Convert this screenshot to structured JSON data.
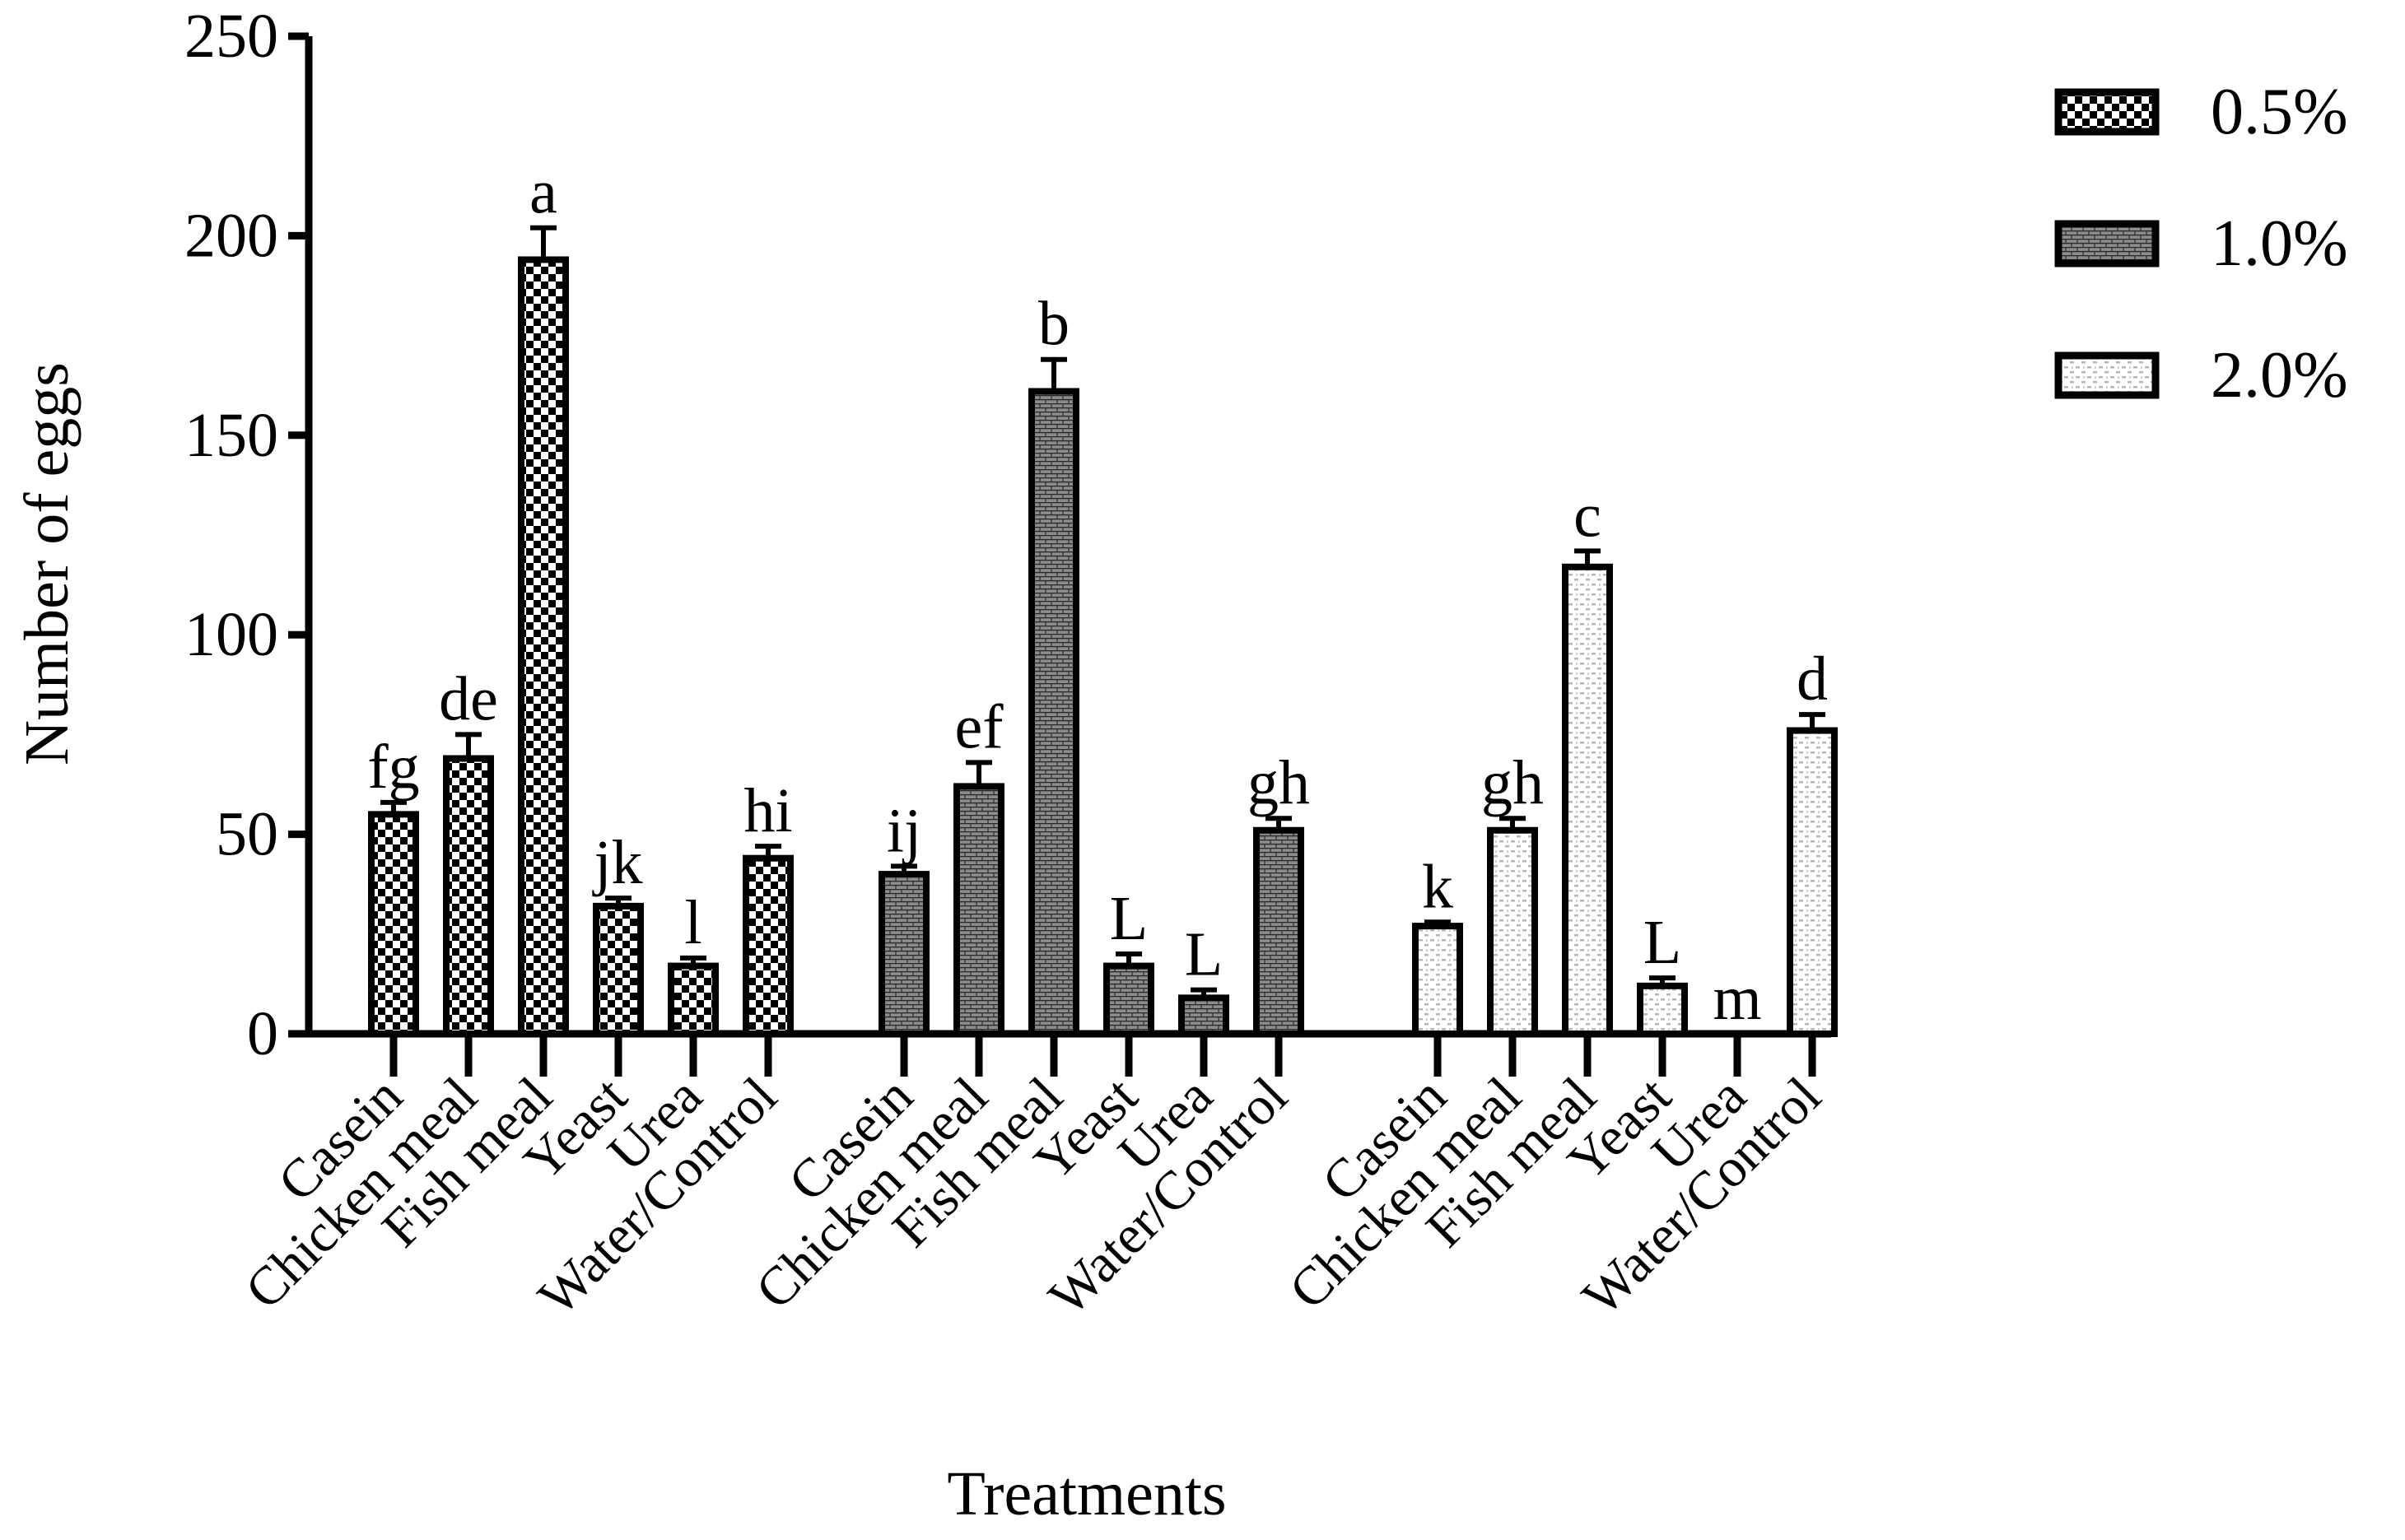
{
  "chart_data": {
    "type": "bar",
    "title": "",
    "xlabel": "Treatments",
    "ylabel": "Number of eggs",
    "ylim": [
      0,
      250
    ],
    "yticks": [
      0,
      50,
      100,
      150,
      200,
      250
    ],
    "grid": false,
    "legend": "top-right",
    "categories": [
      "Casein",
      "Chicken meal",
      "Fish meal",
      "Yeast",
      "Urea",
      "Water/Control"
    ],
    "series": [
      {
        "name": "0.5%",
        "pattern": "checker",
        "values": [
          55,
          69,
          194,
          32,
          17,
          44
        ],
        "errors": [
          3,
          6,
          8,
          2,
          2,
          3
        ],
        "letters": [
          "fg",
          "de",
          "a",
          "jk",
          "l",
          "hi"
        ]
      },
      {
        "name": "1.0%",
        "pattern": "grey-brick",
        "values": [
          40,
          62,
          161,
          17,
          9,
          51
        ],
        "errors": [
          2,
          6,
          8,
          3,
          2,
          3
        ],
        "letters": [
          "ij",
          "ef",
          "b",
          "L",
          "L",
          "gh"
        ]
      },
      {
        "name": "2.0%",
        "pattern": "light-dotted",
        "values": [
          27,
          51,
          117,
          12,
          0,
          76
        ],
        "errors": [
          1,
          3,
          4,
          2,
          0,
          4
        ],
        "letters": [
          "k",
          "gh",
          "c",
          "L",
          "m",
          "d"
        ]
      }
    ]
  }
}
